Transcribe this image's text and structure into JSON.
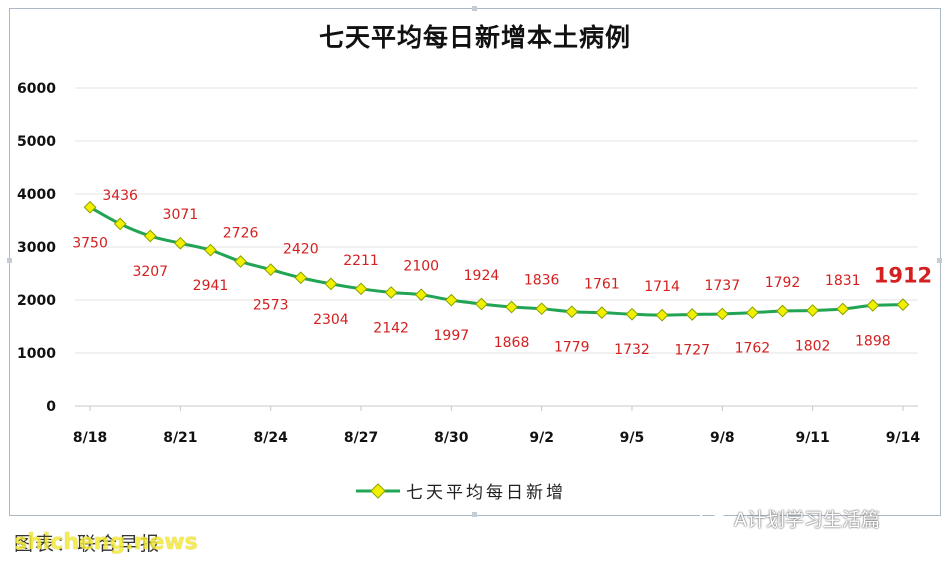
{
  "chart_data": {
    "type": "line",
    "title": "七天平均每日新增本土病例",
    "series": [
      {
        "name": "七天平均每日新增",
        "color": "#22a455",
        "marker_color": "#f0f000",
        "values": [
          3750,
          3436,
          3207,
          3071,
          2941,
          2726,
          2573,
          2420,
          2304,
          2211,
          2142,
          2100,
          1997,
          1924,
          1868,
          1836,
          1779,
          1761,
          1732,
          1714,
          1727,
          1737,
          1762,
          1792,
          1802,
          1831,
          1898,
          1912
        ]
      }
    ],
    "x_tick_labels": [
      "8/18",
      "8/21",
      "8/24",
      "8/27",
      "8/30",
      "9/2",
      "9/5",
      "9/8",
      "9/11",
      "9/14"
    ],
    "x_tick_every": 3,
    "ylim": [
      0,
      6000
    ],
    "y_ticks": [
      0,
      1000,
      2000,
      3000,
      4000,
      5000,
      6000
    ],
    "grid": true,
    "legend_position": "bottom",
    "data_label_color": "#d42020"
  },
  "watermarks": {
    "source": "图表：联合早报",
    "site": "shicheng.news",
    "wechat": "A计划学习生活篇"
  }
}
